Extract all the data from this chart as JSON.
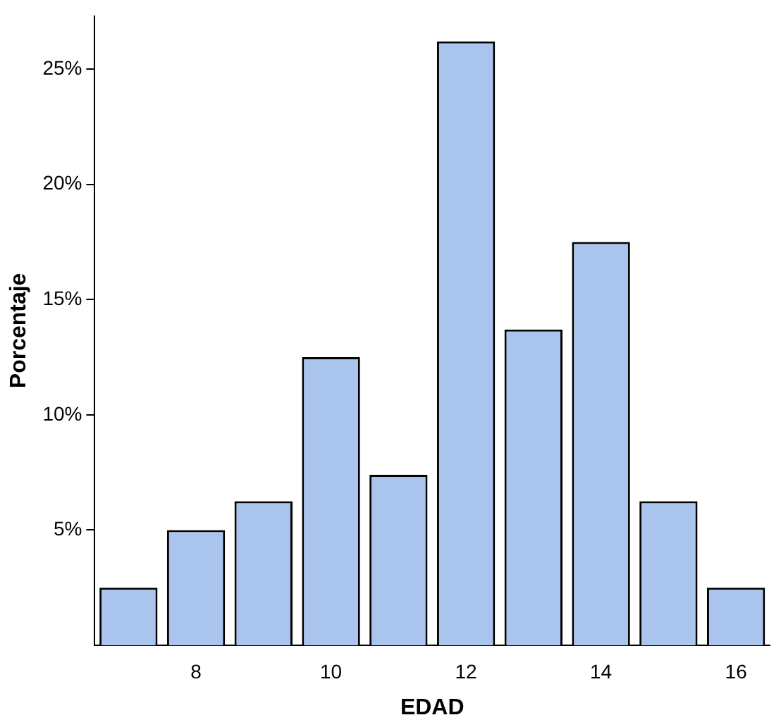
{
  "chart_data": {
    "type": "bar",
    "xlabel": "EDAD",
    "ylabel": "Porcentaje",
    "categories": [
      null,
      "8",
      null,
      "10",
      null,
      "12",
      null,
      "14",
      null,
      "16"
    ],
    "values": [
      2.5,
      5.0,
      6.25,
      12.5,
      7.4,
      26.2,
      13.7,
      17.5,
      6.25,
      2.5
    ],
    "color": "#a9c5ee",
    "ylim": [
      0,
      27.3
    ],
    "yticks": [
      {
        "value": 5,
        "label": "5%"
      },
      {
        "value": 10,
        "label": "10%"
      },
      {
        "value": 15,
        "label": "15%"
      },
      {
        "value": 20,
        "label": "20%"
      },
      {
        "value": 25,
        "label": "25%"
      }
    ],
    "grid": false,
    "legend": false
  }
}
